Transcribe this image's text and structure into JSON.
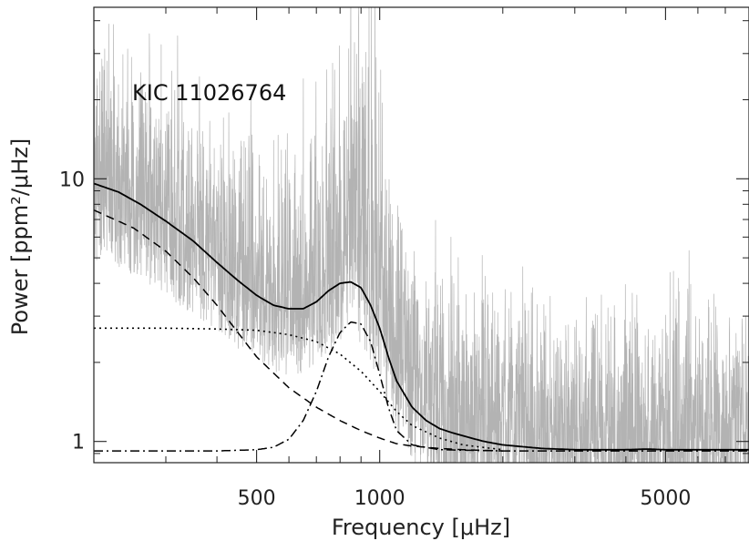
{
  "chart_data": {
    "type": "line",
    "title": "",
    "annotation": "KIC 11026764",
    "xlabel": "Frequency [μHz]",
    "ylabel": "Power [ppm²/μHz]",
    "xscale": "log",
    "yscale": "log",
    "xlim": [
      200,
      8000
    ],
    "ylim": [
      0.83,
      45
    ],
    "xticks": [
      {
        "value": 500,
        "label": "500"
      },
      {
        "value": 1000,
        "label": "1000"
      },
      {
        "value": 5000,
        "label": "5000"
      }
    ],
    "yticks": [
      {
        "value": 1,
        "label": "1"
      },
      {
        "value": 10,
        "label": "10"
      }
    ],
    "grid": false,
    "legend": "none",
    "colors": {
      "spectrum": "#b3b3b3",
      "fit": "#000000",
      "components": "#000000"
    },
    "series": [
      {
        "key": "observed_spectrum",
        "style": "thin-gray",
        "x": [
          200,
          230,
          260,
          300,
          350,
          400,
          450,
          500,
          550,
          600,
          650,
          700,
          750,
          800,
          850,
          900,
          950,
          1000,
          1100,
          1200,
          1400,
          1600,
          2000,
          2500,
          3000,
          3500,
          4000,
          4500,
          5000,
          6000,
          7000,
          8000
        ],
        "y": [
          9.0,
          8.3,
          7.5,
          6.5,
          5.5,
          4.8,
          4.1,
          3.6,
          3.3,
          3.2,
          3.3,
          3.6,
          4.0,
          4.4,
          4.6,
          4.3,
          3.7,
          2.9,
          2.0,
          1.5,
          1.2,
          1.08,
          1.0,
          0.96,
          0.95,
          0.95,
          0.95,
          0.95,
          0.95,
          0.95,
          0.95,
          0.95
        ]
      },
      {
        "key": "total_fit",
        "style": "solid",
        "x": [
          200,
          230,
          260,
          300,
          350,
          400,
          450,
          500,
          550,
          600,
          650,
          700,
          750,
          800,
          850,
          900,
          950,
          1000,
          1050,
          1100,
          1200,
          1300,
          1400,
          1500,
          1600,
          1800,
          2000,
          2500,
          3000,
          3500,
          4000,
          4500,
          5000,
          6000,
          7000,
          8000
        ],
        "y": [
          9.6,
          8.9,
          8.0,
          6.9,
          5.8,
          4.8,
          4.1,
          3.6,
          3.3,
          3.2,
          3.2,
          3.4,
          3.75,
          4.0,
          4.05,
          3.85,
          3.3,
          2.7,
          2.1,
          1.7,
          1.35,
          1.2,
          1.12,
          1.08,
          1.05,
          1.0,
          0.97,
          0.94,
          0.93,
          0.93,
          0.93,
          0.935,
          0.93,
          0.93,
          0.93,
          0.93
        ]
      },
      {
        "key": "background_component_1",
        "style": "dashed",
        "x": [
          200,
          250,
          300,
          350,
          400,
          450,
          500,
          600,
          700,
          800,
          900,
          1000,
          1100,
          1200,
          1400,
          1600,
          2000
        ],
        "y": [
          7.6,
          6.5,
          5.3,
          4.2,
          3.3,
          2.6,
          2.1,
          1.6,
          1.35,
          1.2,
          1.1,
          1.03,
          0.98,
          0.96,
          0.94,
          0.93,
          0.92
        ]
      },
      {
        "key": "background_component_2",
        "style": "dotted",
        "x": [
          200,
          300,
          400,
          500,
          600,
          700,
          800,
          900,
          1000,
          1100,
          1200,
          1400,
          1600,
          2000
        ],
        "y": [
          2.7,
          2.7,
          2.68,
          2.65,
          2.55,
          2.4,
          2.15,
          1.85,
          1.55,
          1.3,
          1.15,
          1.03,
          0.97,
          0.93
        ]
      },
      {
        "key": "oscillation_envelope",
        "style": "dash-dot",
        "x": [
          200,
          400,
          500,
          550,
          600,
          650,
          700,
          750,
          800,
          850,
          900,
          950,
          1000,
          1050,
          1100,
          1200,
          1400,
          2000,
          5000,
          8000
        ],
        "y": [
          0.92,
          0.92,
          0.93,
          0.95,
          1.02,
          1.2,
          1.55,
          2.1,
          2.6,
          2.85,
          2.8,
          2.4,
          1.8,
          1.35,
          1.1,
          0.97,
          0.93,
          0.92,
          0.92,
          0.92
        ]
      }
    ]
  }
}
